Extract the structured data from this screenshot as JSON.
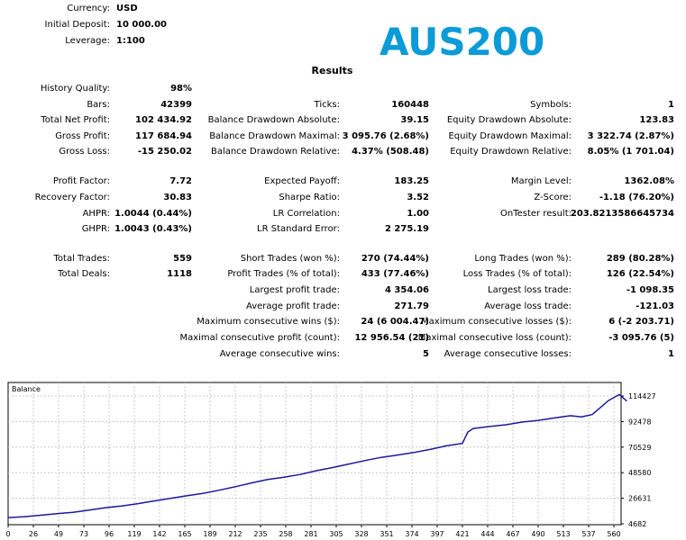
{
  "header": {
    "fields": [
      {
        "label": "Currency:",
        "value": "USD"
      },
      {
        "label": "Initial Deposit:",
        "value": "10 000.00"
      },
      {
        "label": "Leverage:",
        "value": "1:100"
      }
    ],
    "symbol_title": "AUS200",
    "results_title": "Results"
  },
  "results": {
    "col1": [
      {
        "label": "History Quality:",
        "value": "98%"
      },
      {
        "label": "Bars:",
        "value": "42399"
      },
      {
        "label": "Total Net Profit:",
        "value": "102 434.92"
      },
      {
        "label": "Gross Profit:",
        "value": "117 684.94"
      },
      {
        "label": "Gross Loss:",
        "value": "-15 250.02"
      },
      {
        "label": "Profit Factor:",
        "value": "7.72"
      },
      {
        "label": "Recovery Factor:",
        "value": "30.83"
      },
      {
        "label": "AHPR:",
        "value": "1.0044 (0.44%)"
      },
      {
        "label": "GHPR:",
        "value": "1.0043 (0.43%)"
      },
      {
        "label": "Total Trades:",
        "value": "559"
      },
      {
        "label": "Total Deals:",
        "value": "1118"
      }
    ],
    "col2": [
      {
        "label": "Ticks:",
        "value": "160448"
      },
      {
        "label": "Balance Drawdown Absolute:",
        "value": "39.15"
      },
      {
        "label": "Balance Drawdown Maximal:",
        "value": "3 095.76 (2.68%)"
      },
      {
        "label": "Balance Drawdown Relative:",
        "value": "4.37% (508.48)"
      },
      {
        "label": "Expected Payoff:",
        "value": "183.25"
      },
      {
        "label": "Sharpe Ratio:",
        "value": "3.52"
      },
      {
        "label": "LR Correlation:",
        "value": "1.00"
      },
      {
        "label": "LR Standard Error:",
        "value": "2 275.19"
      },
      {
        "label": "Short Trades (won %):",
        "value": "270 (74.44%)"
      },
      {
        "label": "Profit Trades (% of total):",
        "value": "433 (77.46%)"
      },
      {
        "label": "Largest profit trade:",
        "value": "4 354.06"
      },
      {
        "label": "Average profit trade:",
        "value": "271.79"
      },
      {
        "label": "Maximum consecutive wins ($):",
        "value": "24 (6 004.47)"
      },
      {
        "label": "Maximal consecutive profit (count):",
        "value": "12 956.54 (21)"
      },
      {
        "label": "Average consecutive wins:",
        "value": "5"
      }
    ],
    "col3": [
      {
        "label": "Symbols:",
        "value": "1"
      },
      {
        "label": "Equity Drawdown Absolute:",
        "value": "123.83"
      },
      {
        "label": "Equity Drawdown Maximal:",
        "value": "3 322.74 (2.87%)"
      },
      {
        "label": "Equity Drawdown Relative:",
        "value": "8.05% (1 701.04)"
      },
      {
        "label": "Margin Level:",
        "value": "1362.08%"
      },
      {
        "label": "Z-Score:",
        "value": "-1.18 (76.20%)"
      },
      {
        "label": "OnTester result:",
        "value": "203.8213586645734"
      },
      {
        "label": "Long Trades (won %):",
        "value": "289 (80.28%)"
      },
      {
        "label": "Loss Trades (% of total):",
        "value": "126 (22.54%)"
      },
      {
        "label": "Largest loss trade:",
        "value": "-1 098.35"
      },
      {
        "label": "Average loss trade:",
        "value": "-121.03"
      },
      {
        "label": "Maximum consecutive losses ($):",
        "value": "6 (-2 203.71)"
      },
      {
        "label": "Maximal consecutive loss (count):",
        "value": "-3 095.76 (5)"
      },
      {
        "label": "Average consecutive losses:",
        "value": "1"
      }
    ]
  },
  "chart_data": {
    "type": "line",
    "legend_label": "Balance",
    "x_ticks": [
      "0",
      "26",
      "49",
      "73",
      "96",
      "119",
      "142",
      "165",
      "189",
      "212",
      "235",
      "258",
      "281",
      "305",
      "328",
      "351",
      "374",
      "397",
      "421",
      "444",
      "467",
      "490",
      "513",
      "537",
      "560"
    ],
    "y_ticks": [
      "114427",
      "92478",
      "70529",
      "48580",
      "26631",
      "4682"
    ],
    "xlim": [
      0,
      575
    ],
    "ylim": [
      4682,
      125000
    ],
    "line_color": "#1a1a9c",
    "series": [
      {
        "x": [
          0,
          15,
          30,
          45,
          60,
          75,
          90,
          105,
          120,
          135,
          150,
          165,
          180,
          195,
          210,
          225,
          240,
          255,
          270,
          285,
          300,
          315,
          330,
          345,
          360,
          375,
          390,
          405,
          420,
          425,
          430,
          445,
          460,
          475,
          490,
          505,
          520,
          530,
          540,
          555,
          565,
          572
        ],
        "values": [
          10000,
          10800,
          12000,
          13300,
          14600,
          16500,
          18500,
          20000,
          22000,
          24300,
          26500,
          28700,
          30800,
          33500,
          36500,
          39800,
          42700,
          44700,
          47000,
          50300,
          53000,
          56000,
          59000,
          61700,
          63700,
          65900,
          68500,
          71600,
          73800,
          83500,
          86500,
          88200,
          89700,
          92000,
          93500,
          95600,
          97500,
          96500,
          98500,
          110500,
          115700,
          110000
        ]
      }
    ]
  }
}
